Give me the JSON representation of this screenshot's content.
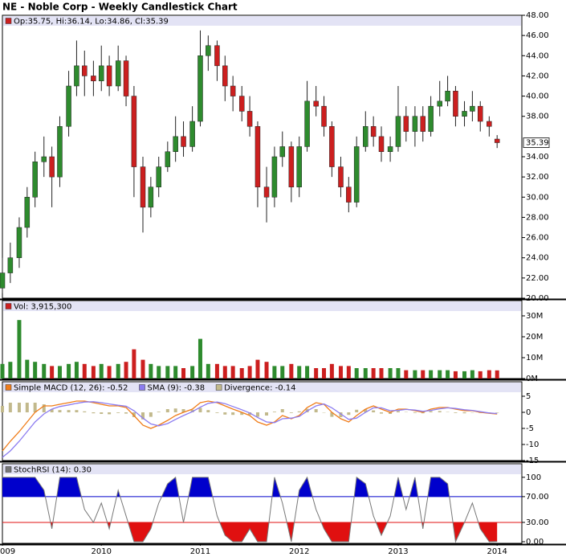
{
  "chart_data": [
    {
      "type": "candlestick",
      "title": "NE - Noble Corp - Weekly Candlestick Chart",
      "legend_label": "Op:35.75, Hi:36.14, Lo:34.86, Cl:35.39",
      "last_close_label": "35.39",
      "up_color": "#2e8b2e",
      "down_color": "#cc1f1f",
      "x": [
        2009.0,
        2009.08,
        2009.17,
        2009.25,
        2009.33,
        2009.42,
        2009.5,
        2009.58,
        2009.67,
        2009.75,
        2009.83,
        2009.92,
        2010.0,
        2010.08,
        2010.17,
        2010.25,
        2010.33,
        2010.42,
        2010.5,
        2010.58,
        2010.67,
        2010.75,
        2010.83,
        2010.92,
        2011.0,
        2011.08,
        2011.17,
        2011.25,
        2011.33,
        2011.42,
        2011.5,
        2011.58,
        2011.67,
        2011.75,
        2011.83,
        2011.92,
        2012.0,
        2012.08,
        2012.17,
        2012.25,
        2012.33,
        2012.42,
        2012.5,
        2012.58,
        2012.67,
        2012.75,
        2012.83,
        2012.92,
        2013.0,
        2013.08,
        2013.17,
        2013.25,
        2013.33,
        2013.42,
        2013.5,
        2013.58,
        2013.67,
        2013.75,
        2013.83,
        2013.92,
        2014.0
      ],
      "open": [
        21,
        22.5,
        24,
        27,
        30,
        33.5,
        34,
        32,
        37,
        41,
        43,
        42,
        41.5,
        43,
        41,
        43.5,
        40,
        33,
        29,
        31,
        33,
        34.5,
        36,
        35,
        37.5,
        44,
        45,
        43,
        41,
        40,
        38.5,
        37,
        31,
        30,
        34,
        35,
        31,
        35,
        39.5,
        39,
        37,
        33,
        31,
        29.5,
        35,
        37,
        36,
        34.5,
        35,
        38,
        36.5,
        38,
        36.5,
        39,
        39.5,
        40.5,
        38,
        38.5,
        39,
        37.5,
        35.75
      ],
      "high": [
        24,
        25.5,
        28,
        31,
        34.5,
        36,
        35,
        38,
        42.5,
        45.5,
        44.5,
        43.5,
        45,
        44,
        45,
        44,
        41,
        34,
        32,
        34,
        35.5,
        38,
        37.5,
        39,
        46.5,
        46,
        45.5,
        44,
        42,
        41,
        40,
        37.5,
        33,
        35,
        36.5,
        35.5,
        36,
        41.5,
        41,
        40,
        37.5,
        34,
        32,
        36,
        38.5,
        38,
        37,
        36,
        41,
        39,
        39,
        39,
        40,
        41.5,
        42,
        41,
        39.5,
        40.5,
        39.5,
        38,
        36.14
      ],
      "low": [
        20.5,
        21.5,
        23,
        26,
        29,
        32,
        29,
        31,
        36,
        40,
        40,
        40,
        40.5,
        40,
        40.5,
        39,
        30,
        26.5,
        28,
        30,
        32.5,
        33.5,
        34,
        34.5,
        37,
        42.5,
        41.5,
        39.5,
        38.5,
        37.5,
        36,
        29,
        27.5,
        29,
        33,
        29.5,
        30,
        34.5,
        38,
        36,
        32,
        30,
        28.5,
        29,
        34.5,
        35,
        33.5,
        33.5,
        34.5,
        35.5,
        35,
        35.5,
        36,
        38,
        39,
        37,
        37,
        37.5,
        36.5,
        36,
        34.86
      ],
      "close": [
        22.5,
        24,
        27,
        30,
        33.5,
        34,
        32,
        37,
        41,
        43,
        42,
        41.5,
        43,
        41,
        43.5,
        40,
        33,
        29,
        31,
        33,
        34.5,
        36,
        35,
        37.5,
        44,
        45,
        43,
        41,
        40,
        38.5,
        37,
        31,
        30,
        34,
        35,
        31,
        35,
        39.5,
        39,
        37,
        33,
        31,
        29.5,
        35,
        37,
        36,
        34.5,
        35,
        38,
        36.5,
        38,
        36.5,
        39,
        39.5,
        40.5,
        38,
        38.5,
        39,
        37.5,
        37,
        35.39
      ],
      "xlim": [
        2009.0,
        2014.25
      ],
      "xticks": [
        {
          "value": 2009,
          "label": "009"
        },
        2010,
        2011,
        2012,
        2013,
        2014
      ],
      "ylim": [
        20,
        48
      ],
      "yticks": [
        {
          "value": 20,
          "label": "20.00"
        },
        {
          "value": 22,
          "label": "22.00"
        },
        {
          "value": 24,
          "label": "24.00"
        },
        {
          "value": 26,
          "label": "26.00"
        },
        {
          "value": 28,
          "label": "28.00"
        },
        {
          "value": 30,
          "label": "30.00"
        },
        {
          "value": 32,
          "label": "32.00"
        },
        {
          "value": 34,
          "label": "34.00"
        },
        {
          "value": 38,
          "label": "38.00"
        },
        {
          "value": 40,
          "label": "40.00"
        },
        {
          "value": 42,
          "label": "42.00"
        },
        {
          "value": 44,
          "label": "44.00"
        },
        {
          "value": 46,
          "label": "46.00"
        },
        {
          "value": 48,
          "label": "48.00"
        }
      ]
    },
    {
      "type": "volume",
      "up_color": "#2e8b2e",
      "down_color": "#cc1f1f",
      "series": [
        {
          "name": "Vol: 3,915,300",
          "color": "#cc1f1f",
          "values": [
            7,
            8,
            28,
            9,
            8,
            7,
            6,
            6,
            7,
            8,
            7,
            6,
            7,
            6,
            7,
            8,
            14,
            9,
            7,
            6,
            6,
            6,
            5,
            6,
            19,
            7,
            7,
            6,
            6,
            5,
            6,
            9,
            8,
            6,
            6,
            7,
            6,
            6,
            5,
            5,
            7,
            6,
            6,
            5,
            5,
            5,
            5,
            5,
            5,
            4,
            4,
            4,
            4,
            4,
            4,
            3.5,
            3.5,
            4,
            3.5,
            4,
            3.9153
          ]
        }
      ],
      "ylim": [
        0,
        37.3
      ],
      "yticks": [
        {
          "value": 0,
          "label": "0M"
        },
        {
          "value": 10,
          "label": "10M"
        },
        {
          "value": 20,
          "label": "20M"
        },
        {
          "value": 30,
          "label": "30M"
        }
      ]
    },
    {
      "type": "line",
      "series": [
        {
          "name": "Simple MACD (12, 26): -0.52",
          "color": "#f07d1a",
          "style": "line",
          "values": [
            -12,
            -9,
            -6,
            -3,
            0,
            2,
            2,
            2.5,
            3,
            3.5,
            3.5,
            3,
            2.5,
            2,
            2,
            1.5,
            -1,
            -4,
            -5,
            -4,
            -2.5,
            -1,
            0,
            1,
            3,
            3.5,
            3,
            2,
            1,
            0,
            -1,
            -3,
            -4,
            -3,
            -1,
            -2,
            -1,
            1.5,
            3,
            2.5,
            0,
            -2,
            -3,
            -1,
            1,
            2,
            1,
            0,
            1,
            1,
            0.5,
            0,
            1,
            1.5,
            1.5,
            1,
            0.5,
            0.5,
            0,
            -0.3,
            -0.52
          ]
        },
        {
          "name": "SMA (9): -0.38",
          "color": "#8c7cf0",
          "style": "line",
          "values": [
            -14,
            -12,
            -9,
            -6,
            -3,
            -0.5,
            1,
            1.8,
            2.3,
            2.8,
            3.2,
            3.3,
            3,
            2.6,
            2.2,
            1.9,
            0.5,
            -1.8,
            -3.6,
            -4.2,
            -3.5,
            -2.2,
            -1,
            0.2,
            1.6,
            2.8,
            3.2,
            2.7,
            1.8,
            0.8,
            -0.2,
            -1.6,
            -3,
            -3.2,
            -2,
            -1.8,
            -1.3,
            0.4,
            2,
            2.6,
            1.4,
            -0.5,
            -2.2,
            -1.8,
            0,
            1.4,
            1.4,
            0.5,
            0.6,
            0.9,
            0.7,
            0.3,
            0.6,
            1.1,
            1.4,
            1.2,
            0.8,
            0.6,
            0.2,
            -0.2,
            -0.38
          ]
        },
        {
          "name": "Divergence: -0.14",
          "color": "#c2b98c",
          "style": "bars",
          "values": [
            2,
            3,
            3,
            3,
            3,
            2.5,
            1,
            0.7,
            0.7,
            0.7,
            0.3,
            -0.3,
            -0.5,
            -0.6,
            -0.2,
            -0.4,
            -1.5,
            -2.2,
            -1.4,
            0.2,
            1,
            1.2,
            1,
            0.8,
            1.4,
            0.7,
            -0.2,
            -0.7,
            -0.8,
            -0.8,
            -0.8,
            -1.4,
            -1,
            0.2,
            1,
            -0.2,
            0.3,
            1.1,
            1,
            -0.1,
            -1.4,
            -1.5,
            -0.8,
            0.8,
            1,
            0.6,
            -0.4,
            -0.5,
            0.4,
            0.1,
            -0.2,
            -0.3,
            0.4,
            0.4,
            0.1,
            -0.2,
            -0.3,
            -0.1,
            -0.2,
            -0.1,
            -0.14
          ]
        }
      ],
      "ylim": [
        -15,
        9.5
      ],
      "yticks": [
        -15,
        -10,
        -5,
        0,
        5
      ]
    },
    {
      "type": "oscillator",
      "series": [
        {
          "name": "StochRSI (14): 0.30",
          "color": "#777777",
          "values": [
            100,
            100,
            100,
            100,
            100,
            80,
            20,
            100,
            100,
            100,
            50,
            30,
            60,
            20,
            80,
            40,
            0,
            0,
            20,
            60,
            90,
            100,
            30,
            100,
            100,
            100,
            40,
            10,
            0,
            0,
            20,
            0,
            0,
            100,
            60,
            0,
            80,
            100,
            50,
            20,
            0,
            0,
            0,
            100,
            90,
            40,
            10,
            40,
            100,
            50,
            100,
            20,
            100,
            100,
            90,
            0,
            30,
            60,
            20,
            0,
            0.3
          ]
        }
      ],
      "upper_band": {
        "value": 70,
        "color": "#0000cc"
      },
      "lower_band": {
        "value": 30,
        "color": "#e01010"
      },
      "ylim": [
        -2.5,
        121
      ],
      "yticks": [
        {
          "value": 0,
          "label": "0.00"
        },
        {
          "value": 30,
          "label": "30.00"
        },
        {
          "value": 70,
          "label": "70.00"
        },
        100
      ]
    }
  ]
}
